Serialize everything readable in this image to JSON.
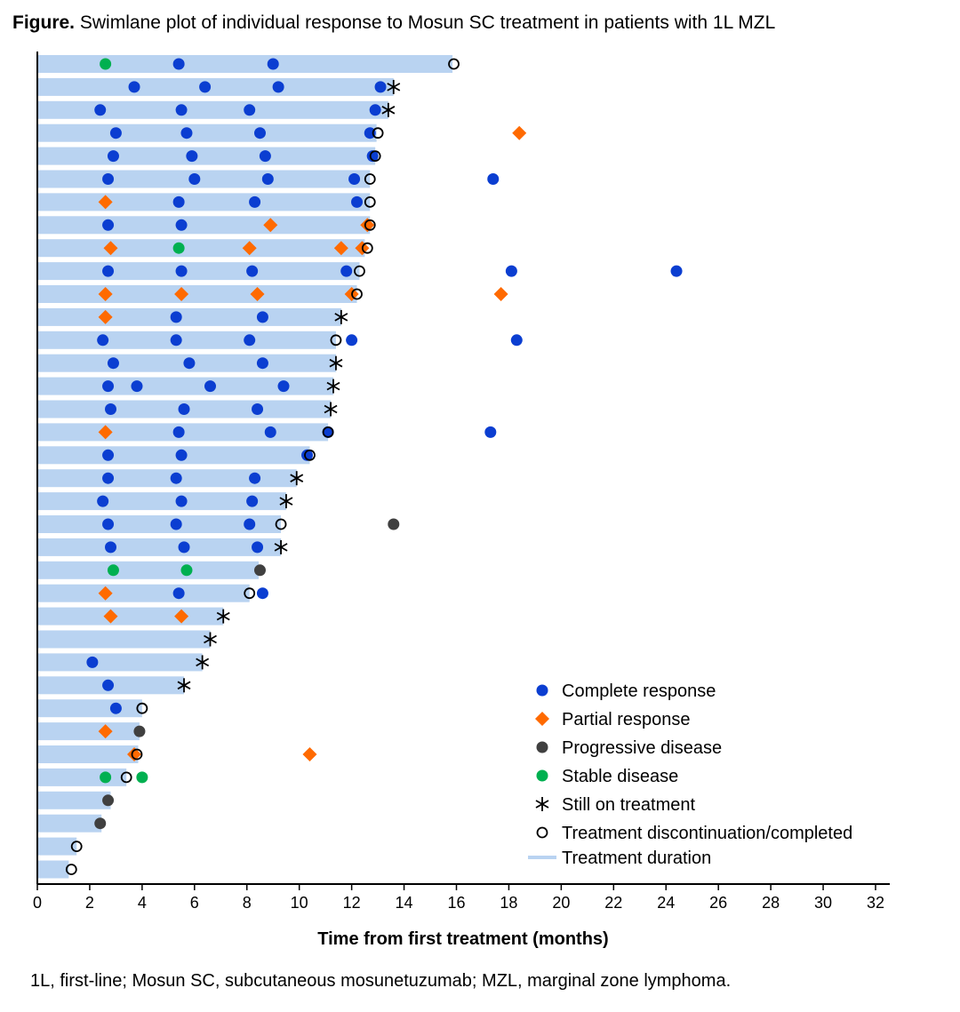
{
  "title_prefix": "Figure.",
  "title_text": "Swimlane plot of individual response to Mosun SC treatment in patients with 1L MZL",
  "footnote": "1L, first-line; Mosun SC, subcutaneous mosunetuzumab; MZL, marginal zone lymphoma.",
  "chart_data": {
    "type": "swimlane",
    "xlabel": "Time from first treatment (months)",
    "ylabel": "",
    "xlim": [
      0,
      32
    ],
    "xticks": [
      0,
      2,
      4,
      6,
      8,
      10,
      12,
      14,
      16,
      18,
      20,
      22,
      24,
      26,
      28,
      30,
      32
    ],
    "grid": false,
    "legend_position": "bottom-right",
    "colors": {
      "CR": "#0b3ed1",
      "PR": "#ff6a00",
      "PD": "#404040",
      "SD": "#00b050",
      "bar": "#b9d3f1"
    },
    "legend": [
      {
        "key": "CR",
        "label": "Complete response"
      },
      {
        "key": "PR",
        "label": "Partial response"
      },
      {
        "key": "PD",
        "label": "Progressive disease"
      },
      {
        "key": "SD",
        "label": "Stable disease"
      },
      {
        "key": "ongoing",
        "label": "Still on treatment"
      },
      {
        "key": "disc",
        "label": "Treatment discontinuation/completed"
      },
      {
        "key": "bar",
        "label": "Treatment duration"
      }
    ],
    "patients": [
      {
        "duration": 15.85,
        "events": [
          [
            "SD",
            2.6
          ],
          [
            "CR",
            5.4
          ],
          [
            "CR",
            9.0
          ],
          [
            "disc",
            15.9
          ]
        ]
      },
      {
        "duration": 13.6,
        "events": [
          [
            "CR",
            3.7
          ],
          [
            "CR",
            6.4
          ],
          [
            "CR",
            9.2
          ],
          [
            "CR",
            13.1
          ],
          [
            "ongoing",
            13.6
          ]
        ]
      },
      {
        "duration": 13.4,
        "events": [
          [
            "CR",
            2.4
          ],
          [
            "CR",
            5.5
          ],
          [
            "CR",
            8.1
          ],
          [
            "CR",
            12.9
          ],
          [
            "ongoing",
            13.4
          ]
        ]
      },
      {
        "duration": 12.95,
        "events": [
          [
            "CR",
            3.0
          ],
          [
            "CR",
            5.7
          ],
          [
            "CR",
            8.5
          ],
          [
            "CR",
            12.7
          ],
          [
            "disc",
            13.0
          ],
          [
            "PR",
            18.4
          ]
        ]
      },
      {
        "duration": 12.9,
        "events": [
          [
            "CR",
            2.9
          ],
          [
            "CR",
            5.9
          ],
          [
            "CR",
            8.7
          ],
          [
            "CR",
            12.8
          ],
          [
            "disc",
            12.9
          ]
        ]
      },
      {
        "duration": 12.7,
        "events": [
          [
            "CR",
            2.7
          ],
          [
            "CR",
            6.0
          ],
          [
            "CR",
            8.8
          ],
          [
            "CR",
            12.1
          ],
          [
            "disc",
            12.7
          ],
          [
            "CR",
            17.4
          ]
        ]
      },
      {
        "duration": 12.7,
        "events": [
          [
            "PR",
            2.6
          ],
          [
            "CR",
            5.4
          ],
          [
            "CR",
            8.3
          ],
          [
            "CR",
            12.2
          ],
          [
            "disc",
            12.7
          ]
        ]
      },
      {
        "duration": 12.7,
        "events": [
          [
            "CR",
            2.7
          ],
          [
            "CR",
            5.5
          ],
          [
            "PR",
            8.9
          ],
          [
            "PR",
            12.6
          ],
          [
            "disc",
            12.7
          ]
        ]
      },
      {
        "duration": 12.5,
        "events": [
          [
            "PR",
            2.8
          ],
          [
            "SD",
            5.4
          ],
          [
            "PR",
            8.1
          ],
          [
            "PR",
            11.6
          ],
          [
            "PR",
            12.4
          ],
          [
            "disc",
            12.6
          ]
        ]
      },
      {
        "duration": 12.3,
        "events": [
          [
            "CR",
            2.7
          ],
          [
            "CR",
            5.5
          ],
          [
            "CR",
            8.2
          ],
          [
            "CR",
            11.8
          ],
          [
            "disc",
            12.3
          ],
          [
            "CR",
            18.1
          ],
          [
            "CR",
            24.4
          ]
        ]
      },
      {
        "duration": 12.2,
        "events": [
          [
            "PR",
            2.6
          ],
          [
            "PR",
            5.5
          ],
          [
            "PR",
            8.4
          ],
          [
            "PR",
            12.0
          ],
          [
            "disc",
            12.2
          ],
          [
            "PR",
            17.7
          ]
        ]
      },
      {
        "duration": 11.6,
        "events": [
          [
            "PR",
            2.6
          ],
          [
            "CR",
            5.3
          ],
          [
            "CR",
            8.6
          ],
          [
            "ongoing",
            11.6
          ]
        ]
      },
      {
        "duration": 11.4,
        "events": [
          [
            "CR",
            2.5
          ],
          [
            "CR",
            5.3
          ],
          [
            "CR",
            8.1
          ],
          [
            "disc",
            11.4
          ],
          [
            "CR",
            12.0
          ],
          [
            "CR",
            18.3
          ]
        ]
      },
      {
        "duration": 11.4,
        "events": [
          [
            "CR",
            2.9
          ],
          [
            "CR",
            5.8
          ],
          [
            "CR",
            8.6
          ],
          [
            "ongoing",
            11.4
          ]
        ]
      },
      {
        "duration": 11.3,
        "events": [
          [
            "CR",
            2.7
          ],
          [
            "CR",
            3.8
          ],
          [
            "CR",
            6.6
          ],
          [
            "CR",
            9.4
          ],
          [
            "ongoing",
            11.3
          ]
        ]
      },
      {
        "duration": 11.2,
        "events": [
          [
            "CR",
            2.8
          ],
          [
            "CR",
            5.6
          ],
          [
            "CR",
            8.4
          ],
          [
            "ongoing",
            11.2
          ]
        ]
      },
      {
        "duration": 11.1,
        "events": [
          [
            "PR",
            2.6
          ],
          [
            "CR",
            5.4
          ],
          [
            "CR",
            8.9
          ],
          [
            "CR",
            11.1
          ],
          [
            "disc",
            11.1
          ],
          [
            "CR",
            17.3
          ]
        ]
      },
      {
        "duration": 10.4,
        "events": [
          [
            "CR",
            2.7
          ],
          [
            "CR",
            5.5
          ],
          [
            "CR",
            10.3
          ],
          [
            "disc",
            10.4
          ]
        ]
      },
      {
        "duration": 9.9,
        "events": [
          [
            "CR",
            2.7
          ],
          [
            "CR",
            5.3
          ],
          [
            "CR",
            8.3
          ],
          [
            "ongoing",
            9.9
          ]
        ]
      },
      {
        "duration": 9.5,
        "events": [
          [
            "CR",
            2.5
          ],
          [
            "CR",
            5.5
          ],
          [
            "CR",
            8.2
          ],
          [
            "ongoing",
            9.5
          ]
        ]
      },
      {
        "duration": 9.3,
        "events": [
          [
            "CR",
            2.7
          ],
          [
            "CR",
            5.3
          ],
          [
            "CR",
            8.1
          ],
          [
            "disc",
            9.3
          ],
          [
            "PD",
            13.6
          ]
        ]
      },
      {
        "duration": 9.3,
        "events": [
          [
            "CR",
            2.8
          ],
          [
            "CR",
            5.6
          ],
          [
            "CR",
            8.4
          ],
          [
            "ongoing",
            9.3
          ]
        ]
      },
      {
        "duration": 8.45,
        "events": [
          [
            "SD",
            2.9
          ],
          [
            "SD",
            5.7
          ],
          [
            "PD",
            8.5
          ]
        ]
      },
      {
        "duration": 8.1,
        "events": [
          [
            "PR",
            2.6
          ],
          [
            "CR",
            5.4
          ],
          [
            "disc",
            8.1
          ],
          [
            "CR",
            8.6
          ]
        ]
      },
      {
        "duration": 7.1,
        "events": [
          [
            "PR",
            2.8
          ],
          [
            "PR",
            5.5
          ],
          [
            "ongoing",
            7.1
          ]
        ]
      },
      {
        "duration": 6.6,
        "events": [
          [
            "ongoing",
            6.6
          ]
        ]
      },
      {
        "duration": 6.3,
        "events": [
          [
            "CR",
            2.1
          ],
          [
            "ongoing",
            6.3
          ]
        ]
      },
      {
        "duration": 5.6,
        "events": [
          [
            "CR",
            2.7
          ],
          [
            "ongoing",
            5.6
          ]
        ]
      },
      {
        "duration": 4.0,
        "events": [
          [
            "CR",
            3.0
          ],
          [
            "disc",
            4.0
          ]
        ]
      },
      {
        "duration": 3.9,
        "events": [
          [
            "PR",
            2.6
          ],
          [
            "PD",
            3.9
          ]
        ]
      },
      {
        "duration": 3.85,
        "events": [
          [
            "PR",
            3.7
          ],
          [
            "disc",
            3.8
          ],
          [
            "PR",
            10.4
          ]
        ]
      },
      {
        "duration": 3.4,
        "events": [
          [
            "SD",
            2.6
          ],
          [
            "disc",
            3.4
          ],
          [
            "SD",
            4.0
          ]
        ]
      },
      {
        "duration": 2.8,
        "events": [
          [
            "PD",
            2.7
          ]
        ]
      },
      {
        "duration": 2.45,
        "events": [
          [
            "PD",
            2.4
          ]
        ]
      },
      {
        "duration": 1.5,
        "events": [
          [
            "disc",
            1.5
          ]
        ]
      },
      {
        "duration": 1.2,
        "events": [
          [
            "disc",
            1.3
          ]
        ]
      }
    ]
  }
}
